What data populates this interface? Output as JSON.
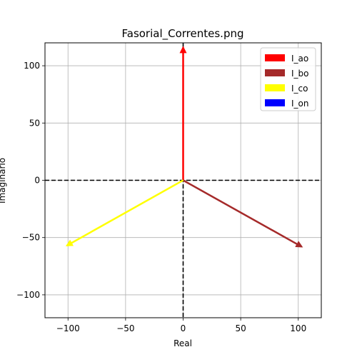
{
  "chart_data": {
    "type": "line",
    "title": "Fasorial_Correntes.png",
    "xlabel": "Real",
    "ylabel": "Imaginário",
    "xlim": [
      -120,
      120
    ],
    "ylim": [
      -120,
      120
    ],
    "xticks": [
      -100,
      -50,
      0,
      50,
      100
    ],
    "yticks": [
      -100,
      -50,
      0,
      50,
      100
    ],
    "xtick_labels": [
      "−100",
      "−50",
      "0",
      "50",
      "100"
    ],
    "ytick_labels": [
      "−100",
      "−50",
      "0",
      "50",
      "100"
    ],
    "grid": true,
    "legend_position": "top-right",
    "reference_lines": [
      {
        "orientation": "horizontal",
        "value": 0,
        "style": "dashed",
        "color": "#000000"
      },
      {
        "orientation": "vertical",
        "value": 0,
        "style": "dashed",
        "color": "#000000"
      }
    ],
    "series": [
      {
        "name": "I_ao",
        "color": "#ff0000",
        "x": [
          0,
          0
        ],
        "y": [
          0,
          116
        ]
      },
      {
        "name": "I_bo",
        "color": "#a52a2a",
        "x": [
          0,
          103
        ],
        "y": [
          0,
          -58
        ]
      },
      {
        "name": "I_co",
        "color": "#ffff00",
        "x": [
          0,
          -101
        ],
        "y": [
          0,
          -57
        ]
      },
      {
        "name": "I_on",
        "color": "#0000ff",
        "x": [
          0,
          0
        ],
        "y": [
          0,
          0
        ]
      }
    ]
  }
}
